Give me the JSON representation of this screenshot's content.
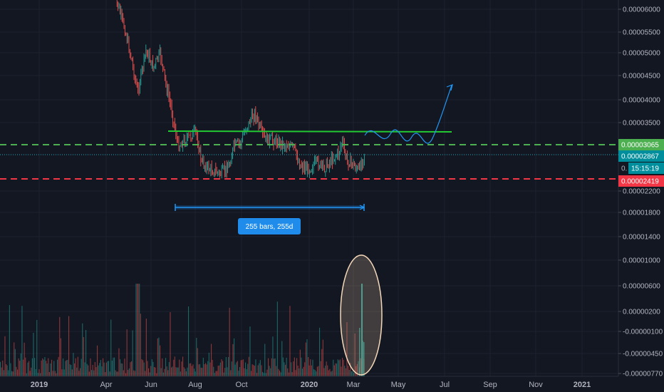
{
  "chart_data": {
    "type": "candlestick",
    "price_axis": {
      "ticks": [
        "0.00006000",
        "0.00005500",
        "0.00005000",
        "0.00004500",
        "0.00004000",
        "0.00003500",
        "0.00003065",
        "0.00002867",
        "0.00002200",
        "0.00001800",
        "0.00001400",
        "0.00001000",
        "0.00000600",
        "0.00000200",
        "-0.00000100",
        "-0.00000450",
        "-0.00000770"
      ]
    },
    "time_axis": {
      "ticks": [
        "2019",
        "Apr",
        "Jun",
        "Aug",
        "Oct",
        "2020",
        "Mar",
        "May",
        "Jul",
        "Sep",
        "Nov",
        "2021"
      ]
    },
    "price_tags": [
      {
        "label": "0.00003065",
        "color": "#4caf50"
      },
      {
        "label": "0.00002867",
        "color": "#008d9c"
      },
      {
        "label": "15:15:19",
        "prefix": "0.",
        "color": "#008d9c"
      },
      {
        "label": "0.00002419",
        "color": "#f23645"
      }
    ],
    "levels": [
      {
        "name": "resistance-dashed",
        "value": 3.065e-05,
        "color": "#4caf50"
      },
      {
        "name": "current-price",
        "value": 2.867e-05,
        "color": "#26a6b5"
      },
      {
        "name": "support-dashed",
        "value": 2.419e-05,
        "color": "#f23645"
      },
      {
        "name": "range-top",
        "value": 3.35e-05,
        "color": "#22c932"
      }
    ],
    "measure": {
      "label": "255 bars, 255d"
    },
    "colors": {
      "up": "#26a69a",
      "down": "#ef5350",
      "background": "#131722",
      "projection": "#2196f3"
    }
  }
}
